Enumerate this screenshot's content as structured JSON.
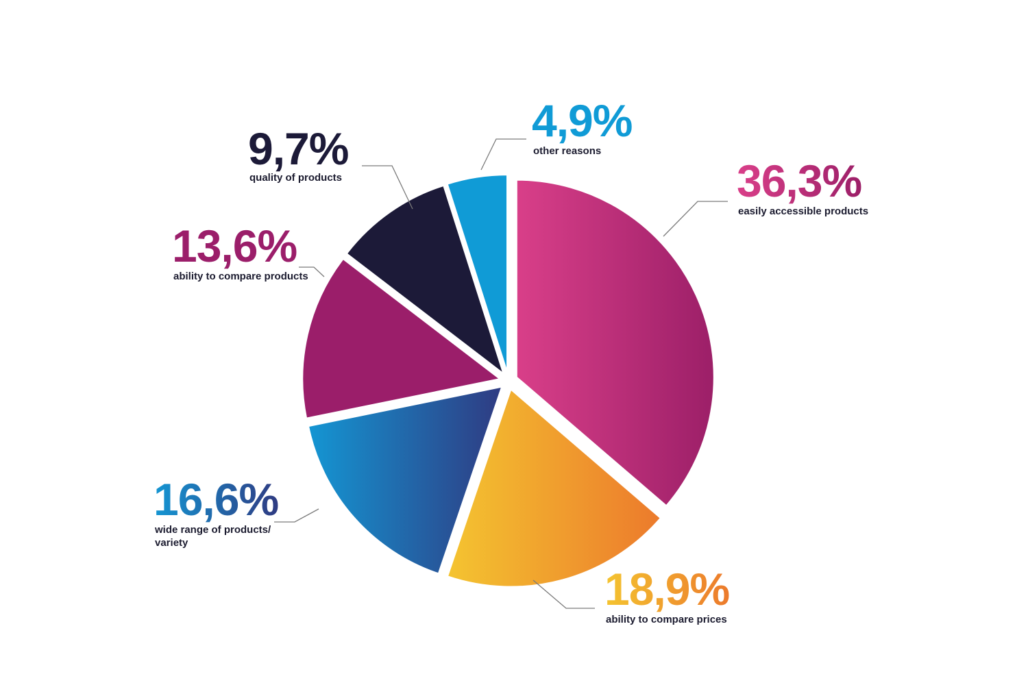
{
  "chart_data": {
    "type": "pie",
    "title": "",
    "slices": [
      {
        "name": "easily accessible products",
        "value": 36.3,
        "label": "36,3%",
        "colors": [
          "#d93f89",
          "#9c1f68"
        ],
        "text_colors": [
          "#d93f89",
          "#9c1f68"
        ]
      },
      {
        "name": "ability to compare prices",
        "value": 18.9,
        "label": "18,9%",
        "colors": [
          "#f4c430",
          "#ec7a2c"
        ],
        "text_colors": [
          "#f4c430",
          "#ec7a2c"
        ]
      },
      {
        "name": "wide range of products/ variety",
        "lines": [
          "wide range of products/",
          "variety"
        ],
        "value": 16.6,
        "label": "16,6%",
        "colors": [
          "#1496d3",
          "#2f3b82"
        ],
        "text_colors": [
          "#1496d3",
          "#2f3b82"
        ]
      },
      {
        "name": "ability to compare products",
        "value": 13.6,
        "label": "13,6%",
        "colors": [
          "#9b1e6a",
          "#9b1e6a"
        ],
        "text_colors": [
          "#9b1e6a",
          "#9b1e6a"
        ]
      },
      {
        "name": "quality of products",
        "value": 9.7,
        "label": "9,7%",
        "colors": [
          "#1c1a38",
          "#1c1a38"
        ],
        "text_colors": [
          "#1c1a38",
          "#1c1a38"
        ]
      },
      {
        "name": "other reasons",
        "value": 4.9,
        "label": "4,9%",
        "colors": [
          "#109bd6",
          "#109bd6"
        ],
        "text_colors": [
          "#109bd6",
          "#109bd6"
        ]
      }
    ],
    "legend": "none"
  }
}
